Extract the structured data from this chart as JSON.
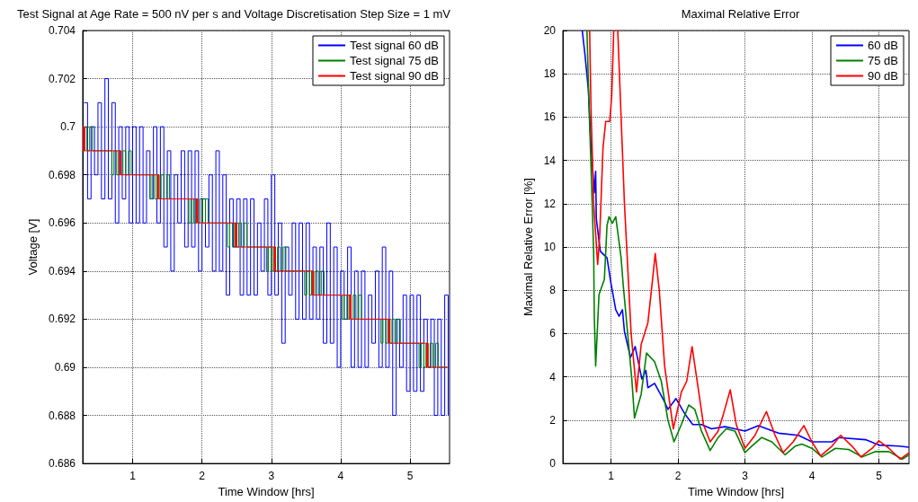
{
  "chart_data": [
    {
      "type": "step",
      "title": "Test Signal at Age Rate = 500 nV per s and Voltage Discretisation Step Size = 1 mV",
      "xlabel": "Time Window [hrs]",
      "ylabel": "Voltage [V]",
      "xlim": [
        0.28,
        5.57
      ],
      "xticks": [
        1,
        2,
        3,
        4,
        5
      ],
      "ylim": [
        0.686,
        0.704
      ],
      "yticks": [
        0.686,
        0.688,
        0.69,
        0.692,
        0.694,
        0.696,
        0.698,
        0.7,
        0.702,
        0.704
      ],
      "grid": true,
      "legend": "top right",
      "series": [
        {
          "name": "Test signal 60 dB",
          "color": "#0000ff",
          "x": [
            0.3,
            0.35,
            0.4,
            0.45,
            0.5,
            0.55,
            0.6,
            0.65,
            0.7,
            0.75,
            0.8,
            0.85,
            0.9,
            0.95,
            1,
            1.05,
            1.1,
            1.15,
            1.2,
            1.25,
            1.3,
            1.35,
            1.4,
            1.45,
            1.5,
            1.55,
            1.6,
            1.65,
            1.7,
            1.75,
            1.8,
            1.85,
            1.9,
            1.95,
            2,
            2.05,
            2.1,
            2.15,
            2.2,
            2.25,
            2.3,
            2.35,
            2.4,
            2.45,
            2.5,
            2.55,
            2.6,
            2.65,
            2.7,
            2.75,
            2.8,
            2.85,
            2.9,
            2.95,
            3,
            3.05,
            3.1,
            3.15,
            3.2,
            3.25,
            3.3,
            3.35,
            3.4,
            3.45,
            3.5,
            3.55,
            3.6,
            3.65,
            3.7,
            3.75,
            3.8,
            3.85,
            3.9,
            3.95,
            4,
            4.05,
            4.1,
            4.15,
            4.2,
            4.25,
            4.3,
            4.35,
            4.4,
            4.45,
            4.5,
            4.55,
            4.6,
            4.65,
            4.7,
            4.75,
            4.8,
            4.85,
            4.9,
            4.95,
            5,
            5.05,
            5.1,
            5.15,
            5.2,
            5.25,
            5.3,
            5.35,
            5.4,
            5.45,
            5.5,
            5.55
          ],
          "values": [
            0.701,
            0.697,
            0.7,
            0.698,
            0.701,
            0.697,
            0.702,
            0.697,
            0.701,
            0.696,
            0.7,
            0.697,
            0.7,
            0.696,
            0.7,
            0.696,
            0.7,
            0.696,
            0.699,
            0.697,
            0.7,
            0.696,
            0.7,
            0.695,
            0.699,
            0.694,
            0.698,
            0.696,
            0.699,
            0.695,
            0.699,
            0.695,
            0.699,
            0.694,
            0.697,
            0.695,
            0.698,
            0.694,
            0.699,
            0.694,
            0.698,
            0.693,
            0.697,
            0.695,
            0.697,
            0.693,
            0.697,
            0.693,
            0.697,
            0.693,
            0.696,
            0.694,
            0.697,
            0.693,
            0.698,
            0.693,
            0.696,
            0.691,
            0.695,
            0.693,
            0.696,
            0.692,
            0.696,
            0.692,
            0.696,
            0.692,
            0.695,
            0.692,
            0.695,
            0.691,
            0.696,
            0.691,
            0.695,
            0.69,
            0.694,
            0.692,
            0.695,
            0.69,
            0.694,
            0.69,
            0.694,
            0.69,
            0.693,
            0.691,
            0.694,
            0.69,
            0.695,
            0.69,
            0.694,
            0.688,
            0.692,
            0.69,
            0.693,
            0.689,
            0.693,
            0.689,
            0.693,
            0.689,
            0.692,
            0.69,
            0.692,
            0.688,
            0.692,
            0.688,
            0.693,
            0.688
          ]
        },
        {
          "name": "Test signal 75 dB",
          "color": "#008000",
          "x": [
            0.28,
            0.31,
            0.34,
            0.38,
            0.42,
            0.67,
            0.7,
            0.73,
            0.77,
            0.8,
            0.83,
            0.86,
            0.9,
            0.94,
            0.98,
            1.22,
            1.25,
            1.28,
            1.32,
            1.35,
            1.38,
            1.41,
            1.45,
            1.49,
            1.53,
            1.78,
            1.81,
            1.84,
            1.88,
            1.91,
            1.94,
            1.97,
            2.01,
            2.05,
            2.09,
            2.34,
            2.37,
            2.4,
            2.44,
            2.47,
            2.5,
            2.53,
            2.57,
            2.61,
            2.65,
            2.9,
            2.93,
            2.96,
            3,
            3.03,
            3.06,
            3.09,
            3.13,
            3.17,
            3.21,
            3.45,
            3.48,
            3.51,
            3.55,
            3.58,
            3.61,
            3.64,
            3.68,
            3.72,
            3.76,
            3.99,
            4.02,
            4.05,
            4.09,
            4.12,
            4.15,
            4.18,
            4.22,
            4.26,
            4.3,
            4.55,
            4.58,
            4.61,
            4.65,
            4.68,
            4.71,
            4.74,
            4.78,
            4.82,
            4.86,
            5.1,
            5.13,
            5.16,
            5.2,
            5.23,
            5.26,
            5.29,
            5.33,
            5.37,
            5.41,
            5.54
          ],
          "values": [
            0.699,
            0.7,
            0.699,
            0.7,
            0.699,
            0.699,
            0.698,
            0.699,
            0.698,
            0.699,
            0.698,
            0.699,
            0.698,
            0.699,
            0.698,
            0.698,
            0.697,
            0.698,
            0.697,
            0.698,
            0.697,
            0.698,
            0.697,
            0.698,
            0.697,
            0.697,
            0.696,
            0.697,
            0.696,
            0.697,
            0.696,
            0.697,
            0.696,
            0.697,
            0.696,
            0.696,
            0.695,
            0.696,
            0.695,
            0.696,
            0.695,
            0.696,
            0.695,
            0.696,
            0.695,
            0.695,
            0.694,
            0.695,
            0.694,
            0.695,
            0.694,
            0.695,
            0.694,
            0.695,
            0.694,
            0.694,
            0.693,
            0.694,
            0.693,
            0.694,
            0.693,
            0.694,
            0.693,
            0.694,
            0.693,
            0.693,
            0.692,
            0.693,
            0.692,
            0.693,
            0.692,
            0.693,
            0.692,
            0.693,
            0.692,
            0.692,
            0.691,
            0.692,
            0.691,
            0.692,
            0.691,
            0.692,
            0.691,
            0.692,
            0.691,
            0.691,
            0.69,
            0.691,
            0.69,
            0.691,
            0.69,
            0.691,
            0.69,
            0.691,
            0.69,
            0.69
          ]
        },
        {
          "name": "Test signal 90 dB",
          "color": "#ff0000",
          "x": [
            0.28,
            0.29,
            0.3,
            0.31,
            0.8,
            0.81,
            0.82,
            0.83,
            1.35,
            1.36,
            1.37,
            1.38,
            1.91,
            1.92,
            1.93,
            1.94,
            2.47,
            2.48,
            2.49,
            2.5,
            3.03,
            3.04,
            3.05,
            3.06,
            3.58,
            3.59,
            3.6,
            3.61,
            4.12,
            4.13,
            4.14,
            4.15,
            4.68,
            4.69,
            4.7,
            4.71,
            5.23,
            5.24,
            5.25,
            5.26,
            5.54
          ],
          "values": [
            0.7,
            0.699,
            0.7,
            0.699,
            0.699,
            0.698,
            0.699,
            0.698,
            0.698,
            0.697,
            0.698,
            0.697,
            0.697,
            0.696,
            0.697,
            0.696,
            0.696,
            0.695,
            0.696,
            0.695,
            0.695,
            0.694,
            0.695,
            0.694,
            0.694,
            0.693,
            0.694,
            0.693,
            0.693,
            0.692,
            0.693,
            0.692,
            0.692,
            0.691,
            0.692,
            0.691,
            0.691,
            0.69,
            0.691,
            0.69,
            0.69
          ]
        }
      ]
    },
    {
      "type": "line",
      "title": "Maximal Relative Error",
      "xlabel": "Time Window [hrs]",
      "ylabel": "Maximal Relative Error [%]",
      "xlim": [
        0.28,
        5.45
      ],
      "xticks": [
        1,
        2,
        3,
        4,
        5
      ],
      "ylim": [
        0,
        20
      ],
      "yticks": [
        0,
        2,
        4,
        6,
        8,
        10,
        12,
        14,
        16,
        18,
        20
      ],
      "grid": true,
      "legend": "top right",
      "series": [
        {
          "name": "60 dB",
          "color": "#0000ff",
          "x": [
            0.57,
            0.61,
            0.66,
            0.7,
            0.75,
            0.77,
            0.78,
            0.84,
            0.94,
            1.0,
            1.07,
            1.12,
            1.17,
            1.2,
            1.29,
            1.36,
            1.46,
            1.52,
            1.55,
            1.65,
            1.79,
            1.85,
            1.97,
            2.1,
            2.22,
            2.35,
            2.5,
            2.7,
            2.85,
            3.0,
            3.2,
            3.5,
            3.8,
            4.0,
            4.3,
            4.4,
            4.8,
            5.0,
            5.3,
            5.45
          ],
          "values": [
            20,
            18.9,
            17.3,
            14.7,
            12.5,
            13.5,
            11.3,
            9.8,
            9.5,
            8.3,
            7.1,
            6.8,
            7.1,
            6.1,
            4.9,
            5.4,
            3.9,
            4.3,
            3.5,
            3.7,
            2.9,
            2.5,
            3.0,
            2.3,
            1.8,
            1.8,
            1.6,
            1.7,
            1.6,
            1.5,
            1.75,
            1.4,
            1.3,
            1.0,
            1.0,
            1.2,
            1.1,
            0.85,
            0.8,
            0.75
          ]
        },
        {
          "name": "75 dB",
          "color": "#008000",
          "x": [
            0.64,
            0.67,
            0.7,
            0.74,
            0.75,
            0.77,
            0.82,
            0.9,
            0.94,
            0.97,
            1.02,
            1.07,
            1.15,
            1.18,
            1.31,
            1.35,
            1.45,
            1.53,
            1.65,
            1.75,
            1.85,
            1.94,
            2.05,
            2.16,
            2.25,
            2.35,
            2.48,
            2.6,
            2.72,
            2.85,
            3.0,
            3.1,
            3.25,
            3.4,
            3.6,
            3.75,
            3.85,
            4.0,
            4.15,
            4.35,
            4.55,
            4.75,
            4.95,
            5.15,
            5.35,
            5.45
          ],
          "values": [
            20,
            16.6,
            13.8,
            9.8,
            6.8,
            4.5,
            7.8,
            8.5,
            11.0,
            11.4,
            11.1,
            11.4,
            9.5,
            8.3,
            3.9,
            2.1,
            3.2,
            5.1,
            4.7,
            3.8,
            2.0,
            1.0,
            1.8,
            2.7,
            2.5,
            1.5,
            0.6,
            1.2,
            1.6,
            1.5,
            0.5,
            0.8,
            1.2,
            1.0,
            0.4,
            0.8,
            0.9,
            0.7,
            0.3,
            0.7,
            0.65,
            0.3,
            0.55,
            0.55,
            0.2,
            0.4
          ]
        },
        {
          "name": "90 dB",
          "color": "#ff0000",
          "x": [
            0.68,
            0.7,
            0.74,
            0.8,
            0.83,
            0.88,
            0.92,
            0.98,
            1.01,
            1.04,
            1.05,
            1.09,
            1.1,
            1.15,
            1.2,
            1.25,
            1.3,
            1.38,
            1.45,
            1.55,
            1.62,
            1.66,
            1.72,
            1.8,
            1.93,
            2.05,
            2.13,
            2.21,
            2.3,
            2.38,
            2.48,
            2.6,
            2.68,
            2.78,
            2.87,
            3.0,
            3.15,
            3.32,
            3.45,
            3.57,
            3.72,
            3.88,
            4.0,
            4.13,
            4.3,
            4.43,
            4.6,
            4.73,
            4.9,
            5.0,
            5.15,
            5.32,
            5.45
          ],
          "values": [
            20,
            16.5,
            12.0,
            9.2,
            10.5,
            14.6,
            15.8,
            15.8,
            17.0,
            20,
            null,
            null,
            20,
            16.0,
            12.0,
            9.0,
            6.0,
            3.3,
            5.5,
            6.5,
            8.5,
            9.7,
            8.0,
            4.5,
            1.6,
            3.3,
            3.8,
            5.4,
            3.5,
            1.8,
            1.0,
            1.5,
            2.3,
            3.4,
            1.8,
            0.7,
            1.3,
            2.4,
            1.3,
            0.5,
            1.0,
            1.75,
            1.0,
            0.35,
            0.8,
            1.3,
            0.8,
            0.3,
            0.7,
            1.05,
            0.7,
            0.2,
            0.5
          ]
        }
      ]
    }
  ]
}
